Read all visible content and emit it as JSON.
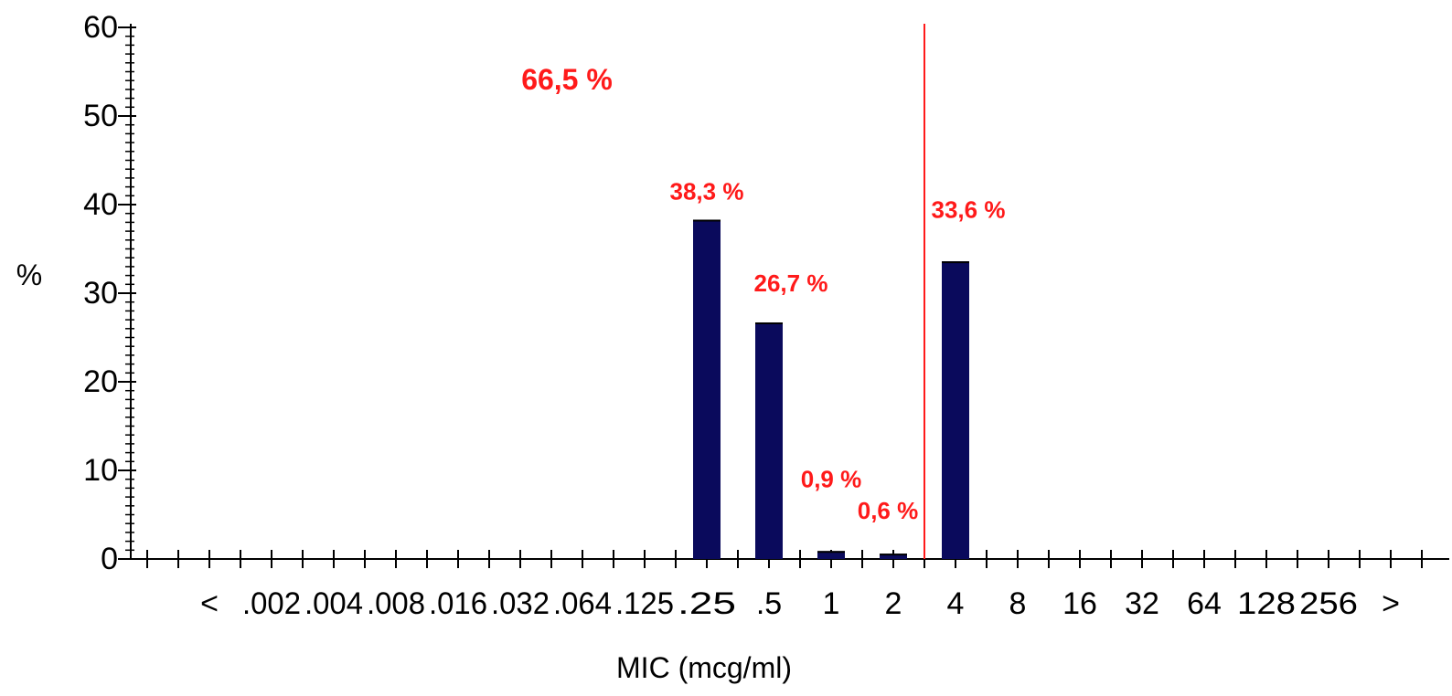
{
  "chart_data": {
    "type": "bar",
    "categories": [
      "<",
      ".002",
      ".004",
      ".008",
      ".016",
      ".032",
      ".064",
      ".125",
      ".25",
      ".5",
      "1",
      "2",
      "4",
      "8",
      "16",
      "32",
      "64",
      "128",
      "256",
      ">"
    ],
    "values": [
      0,
      0,
      0,
      0,
      0,
      0,
      0,
      0,
      38.3,
      26.7,
      0.9,
      0.6,
      33.6,
      0,
      0,
      0,
      0,
      0,
      0,
      0
    ],
    "xlabel": "MIC (mcg/ml)",
    "ylabel": "%",
    "ylim": [
      0,
      60
    ],
    "yticks": [
      0,
      10,
      20,
      30,
      40,
      50,
      60
    ],
    "grid": false,
    "legend": "none",
    "bar_color": "#0a0a5c",
    "annotation_color": "#ff1a1a",
    "breakpoint": {
      "between": [
        "2",
        "4"
      ],
      "color": "#ff1a1a"
    },
    "bar_labels": [
      {
        "category": ".25",
        "text": "38,3 %"
      },
      {
        "category": ".5",
        "text": "26,7 %"
      },
      {
        "category": "1",
        "text": "0,9 %"
      },
      {
        "category": "2",
        "text": "0,6 %"
      },
      {
        "category": "4",
        "text": "33,6 %"
      }
    ],
    "cumulative_label": {
      "text": "66,5 %",
      "side": "left-of-breakpoint"
    }
  }
}
